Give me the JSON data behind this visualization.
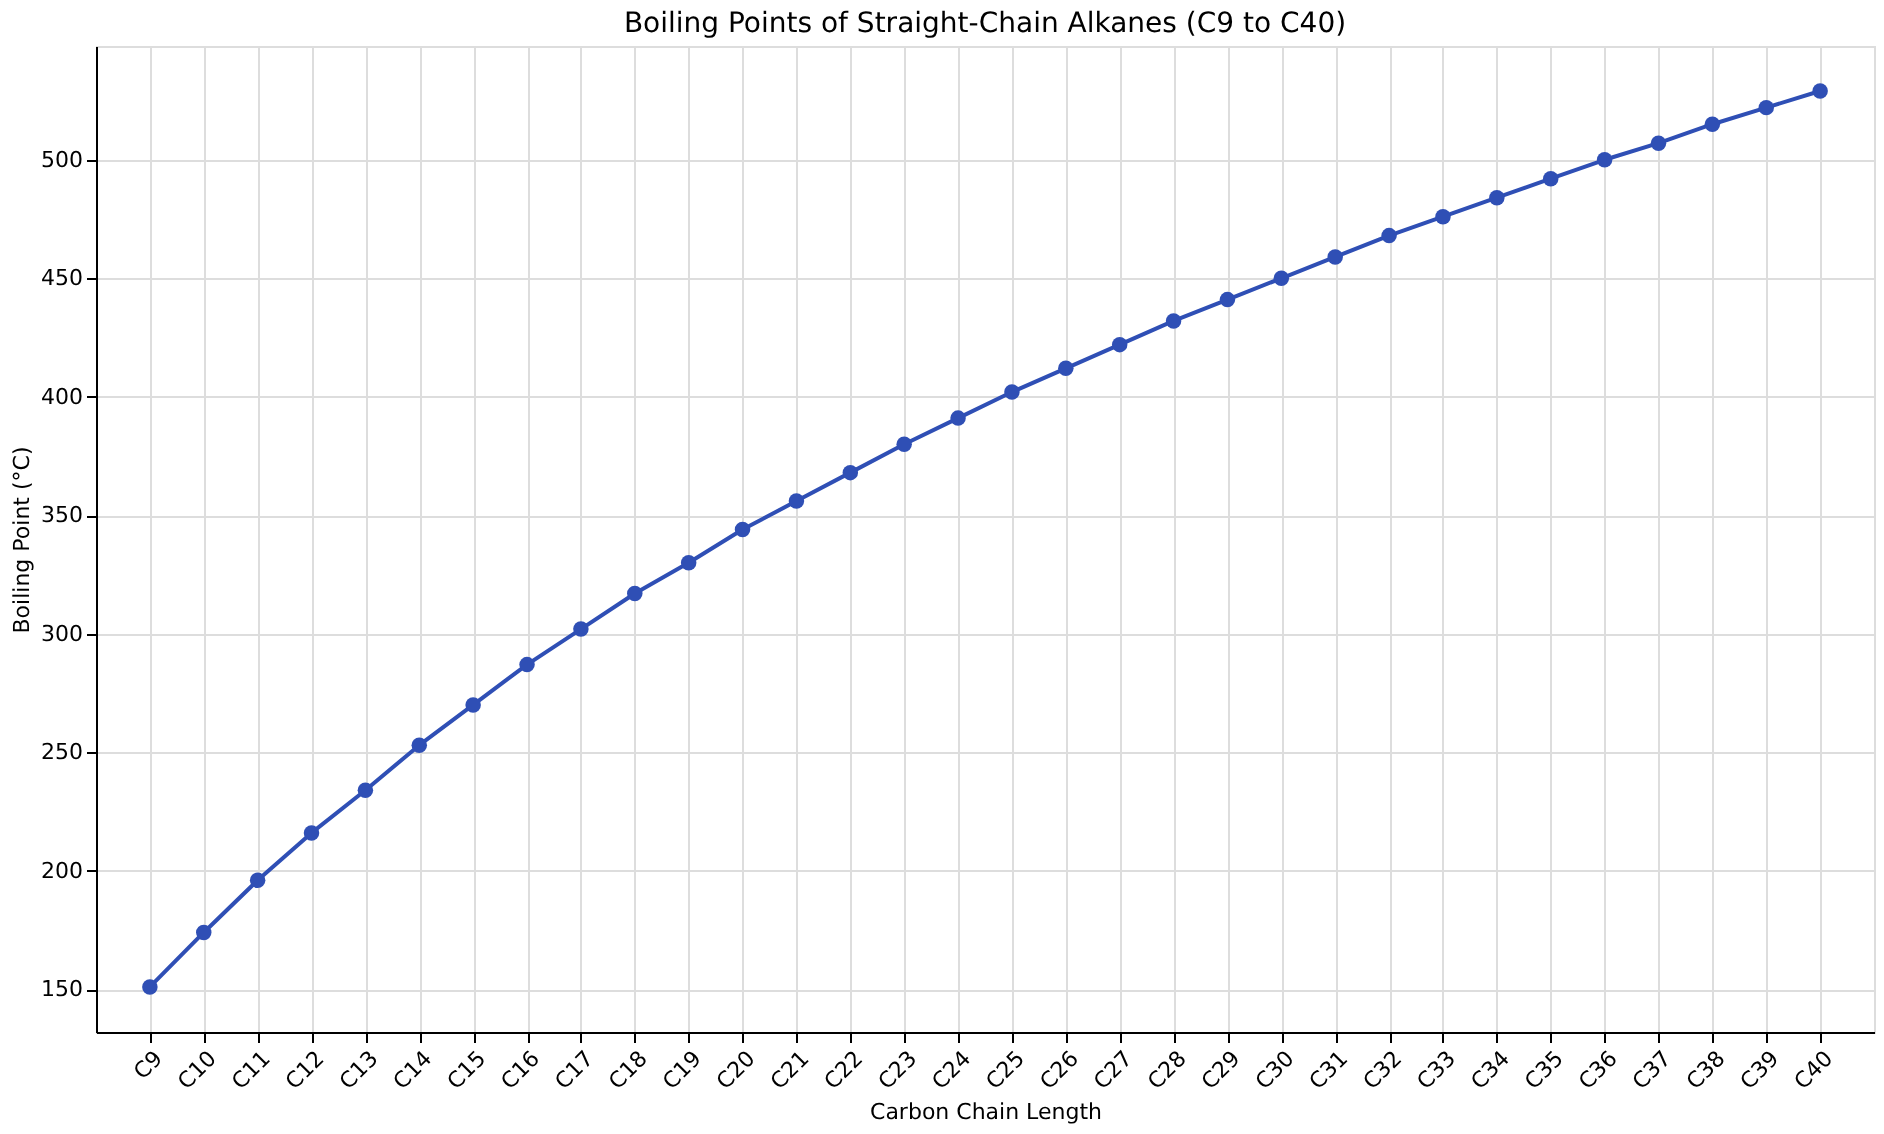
{
  "chart_data": {
    "type": "line",
    "title": "Boiling Points of Straight-Chain Alkanes (C9 to C40)",
    "xlabel": "Carbon Chain Length",
    "ylabel": "Boiling Point (°C)",
    "categories": [
      "C9",
      "C10",
      "C11",
      "C12",
      "C13",
      "C14",
      "C15",
      "C16",
      "C17",
      "C18",
      "C19",
      "C20",
      "C21",
      "C22",
      "C23",
      "C24",
      "C25",
      "C26",
      "C27",
      "C28",
      "C29",
      "C30",
      "C31",
      "C32",
      "C33",
      "C34",
      "C35",
      "C36",
      "C37",
      "C38",
      "C39",
      "C40"
    ],
    "series": [
      {
        "color": "#2f4fb5",
        "values": [
          151,
          174,
          196,
          216,
          234,
          253,
          270,
          287,
          302,
          317,
          330,
          344,
          356,
          368,
          380,
          391,
          402,
          412,
          422,
          432,
          441,
          450,
          459,
          468,
          476,
          484,
          492,
          500,
          507,
          515,
          522,
          529
        ]
      }
    ],
    "ylim": [
      132,
      548
    ],
    "yticks": [
      150,
      200,
      250,
      300,
      350,
      400,
      450,
      500
    ],
    "grid": true,
    "marker": "circle",
    "line_style": "solid"
  }
}
